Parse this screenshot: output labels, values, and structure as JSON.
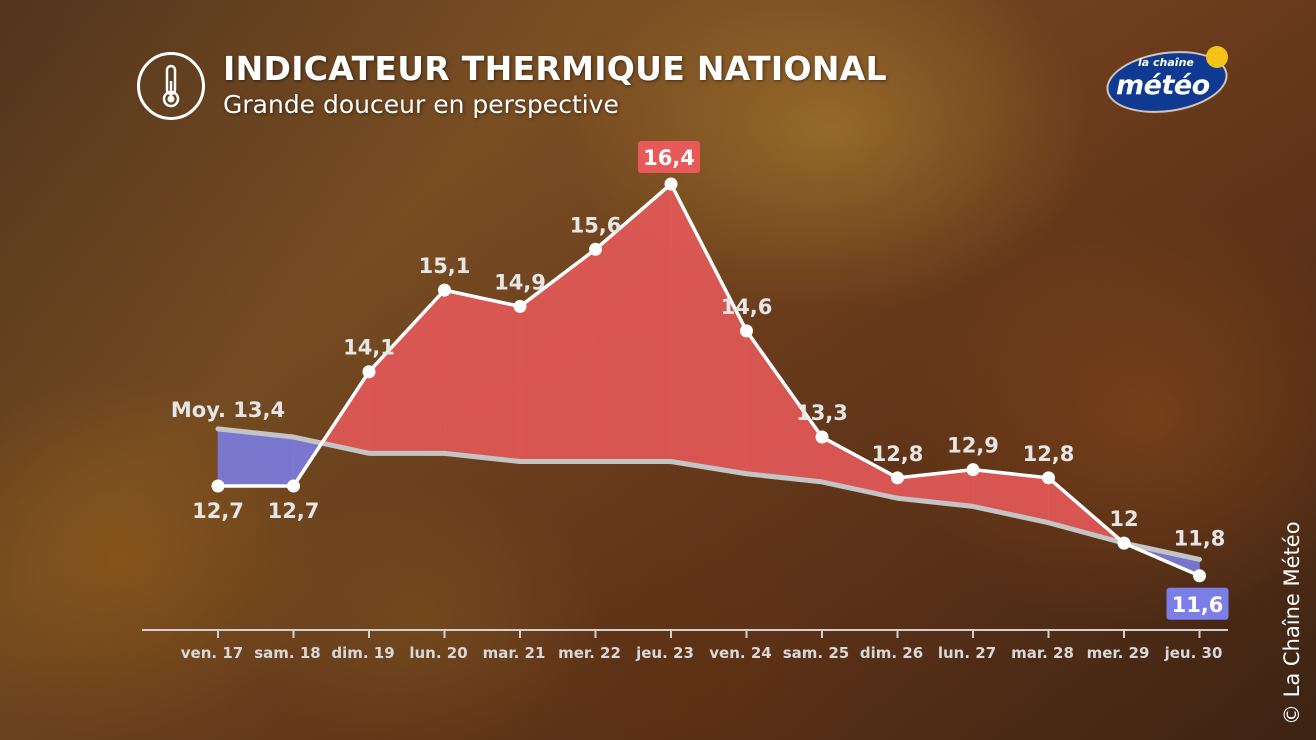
{
  "header": {
    "title": "INDICATEUR THERMIQUE NATIONAL",
    "subtitle": "Grande douceur en perspective",
    "icon": "thermometer-icon"
  },
  "logo": {
    "small": "la chaîne",
    "big": "météo"
  },
  "copyright": "© La Chaîne Météo",
  "colors": {
    "warm": "#e85a5a",
    "cool": "#7b7ee6",
    "average": "#c4c4c4",
    "line": "#ffffff"
  },
  "chart_data": {
    "type": "line",
    "title": "INDICATEUR THERMIQUE NATIONAL",
    "subtitle": "Grande douceur en perspective",
    "categories": [
      "ven. 17",
      "sam. 18",
      "dim. 19",
      "lun. 20",
      "mar. 21",
      "mer. 22",
      "jeu. 23",
      "ven. 24",
      "sam. 25",
      "dim. 26",
      "lun. 27",
      "mar. 28",
      "mer. 29",
      "jeu. 30"
    ],
    "series": [
      {
        "values": [
          12.7,
          12.7,
          14.1,
          15.1,
          14.9,
          15.6,
          16.4,
          14.6,
          13.3,
          12.8,
          12.9,
          12.8,
          12.0,
          11.6
        ],
        "labels": [
          "12,7",
          "12,7",
          "14,1",
          "15,1",
          "14,9",
          "15,6",
          "16,4",
          "14,6",
          "13,3",
          "12,8",
          "12,9",
          "12,8",
          "12",
          "11,6"
        ]
      },
      {
        "values": [
          13.4,
          13.3,
          13.1,
          13.1,
          13.0,
          13.0,
          13.0,
          12.85,
          12.75,
          12.55,
          12.45,
          12.25,
          12.0,
          11.8
        ]
      }
    ],
    "average_label": "Moy. 13,4",
    "average_end_label": "11,8",
    "ylim": [
      11.4,
      16.6
    ],
    "grid": false,
    "legend": "none"
  }
}
